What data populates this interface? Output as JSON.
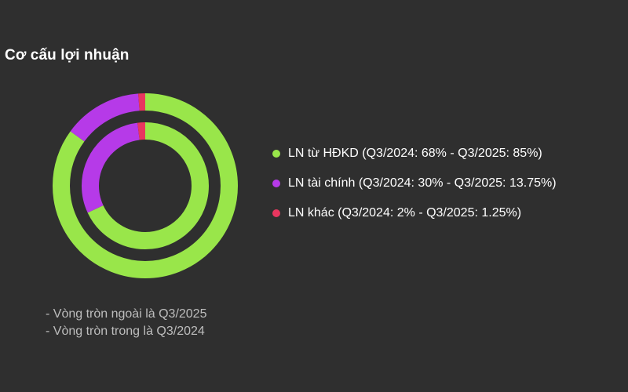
{
  "chart_data": {
    "type": "pie",
    "title": "Cơ cấu lợi nhuận",
    "categories": [
      "LN từ HĐKD",
      "LN tài chính",
      "LN khác"
    ],
    "series": [
      {
        "values": [
          85,
          13.75,
          1.25
        ]
      },
      {
        "values": [
          68,
          30,
          2
        ]
      }
    ],
    "colors": [
      "#99e64a",
      "#b63ae8",
      "#e8365f"
    ],
    "legend": {
      "placement": "right",
      "entries": [
        "LN từ HĐKD (Q3/2024: 68% - Q3/2025: 85%)",
        "LN tài chính (Q3/2024: 30% - Q3/2025: 13.75%)",
        "LN khác (Q3/2024: 2% - Q3/2025: 1.25%)"
      ]
    },
    "annotations": [
      "- Vòng tròn ngoài là Q3/2025",
      "- Vòng tròn trong là Q3/2024"
    ]
  },
  "colors": {
    "background": "#2f2f2f",
    "text": "#ffffff",
    "note_text": "#bdbdbd"
  }
}
